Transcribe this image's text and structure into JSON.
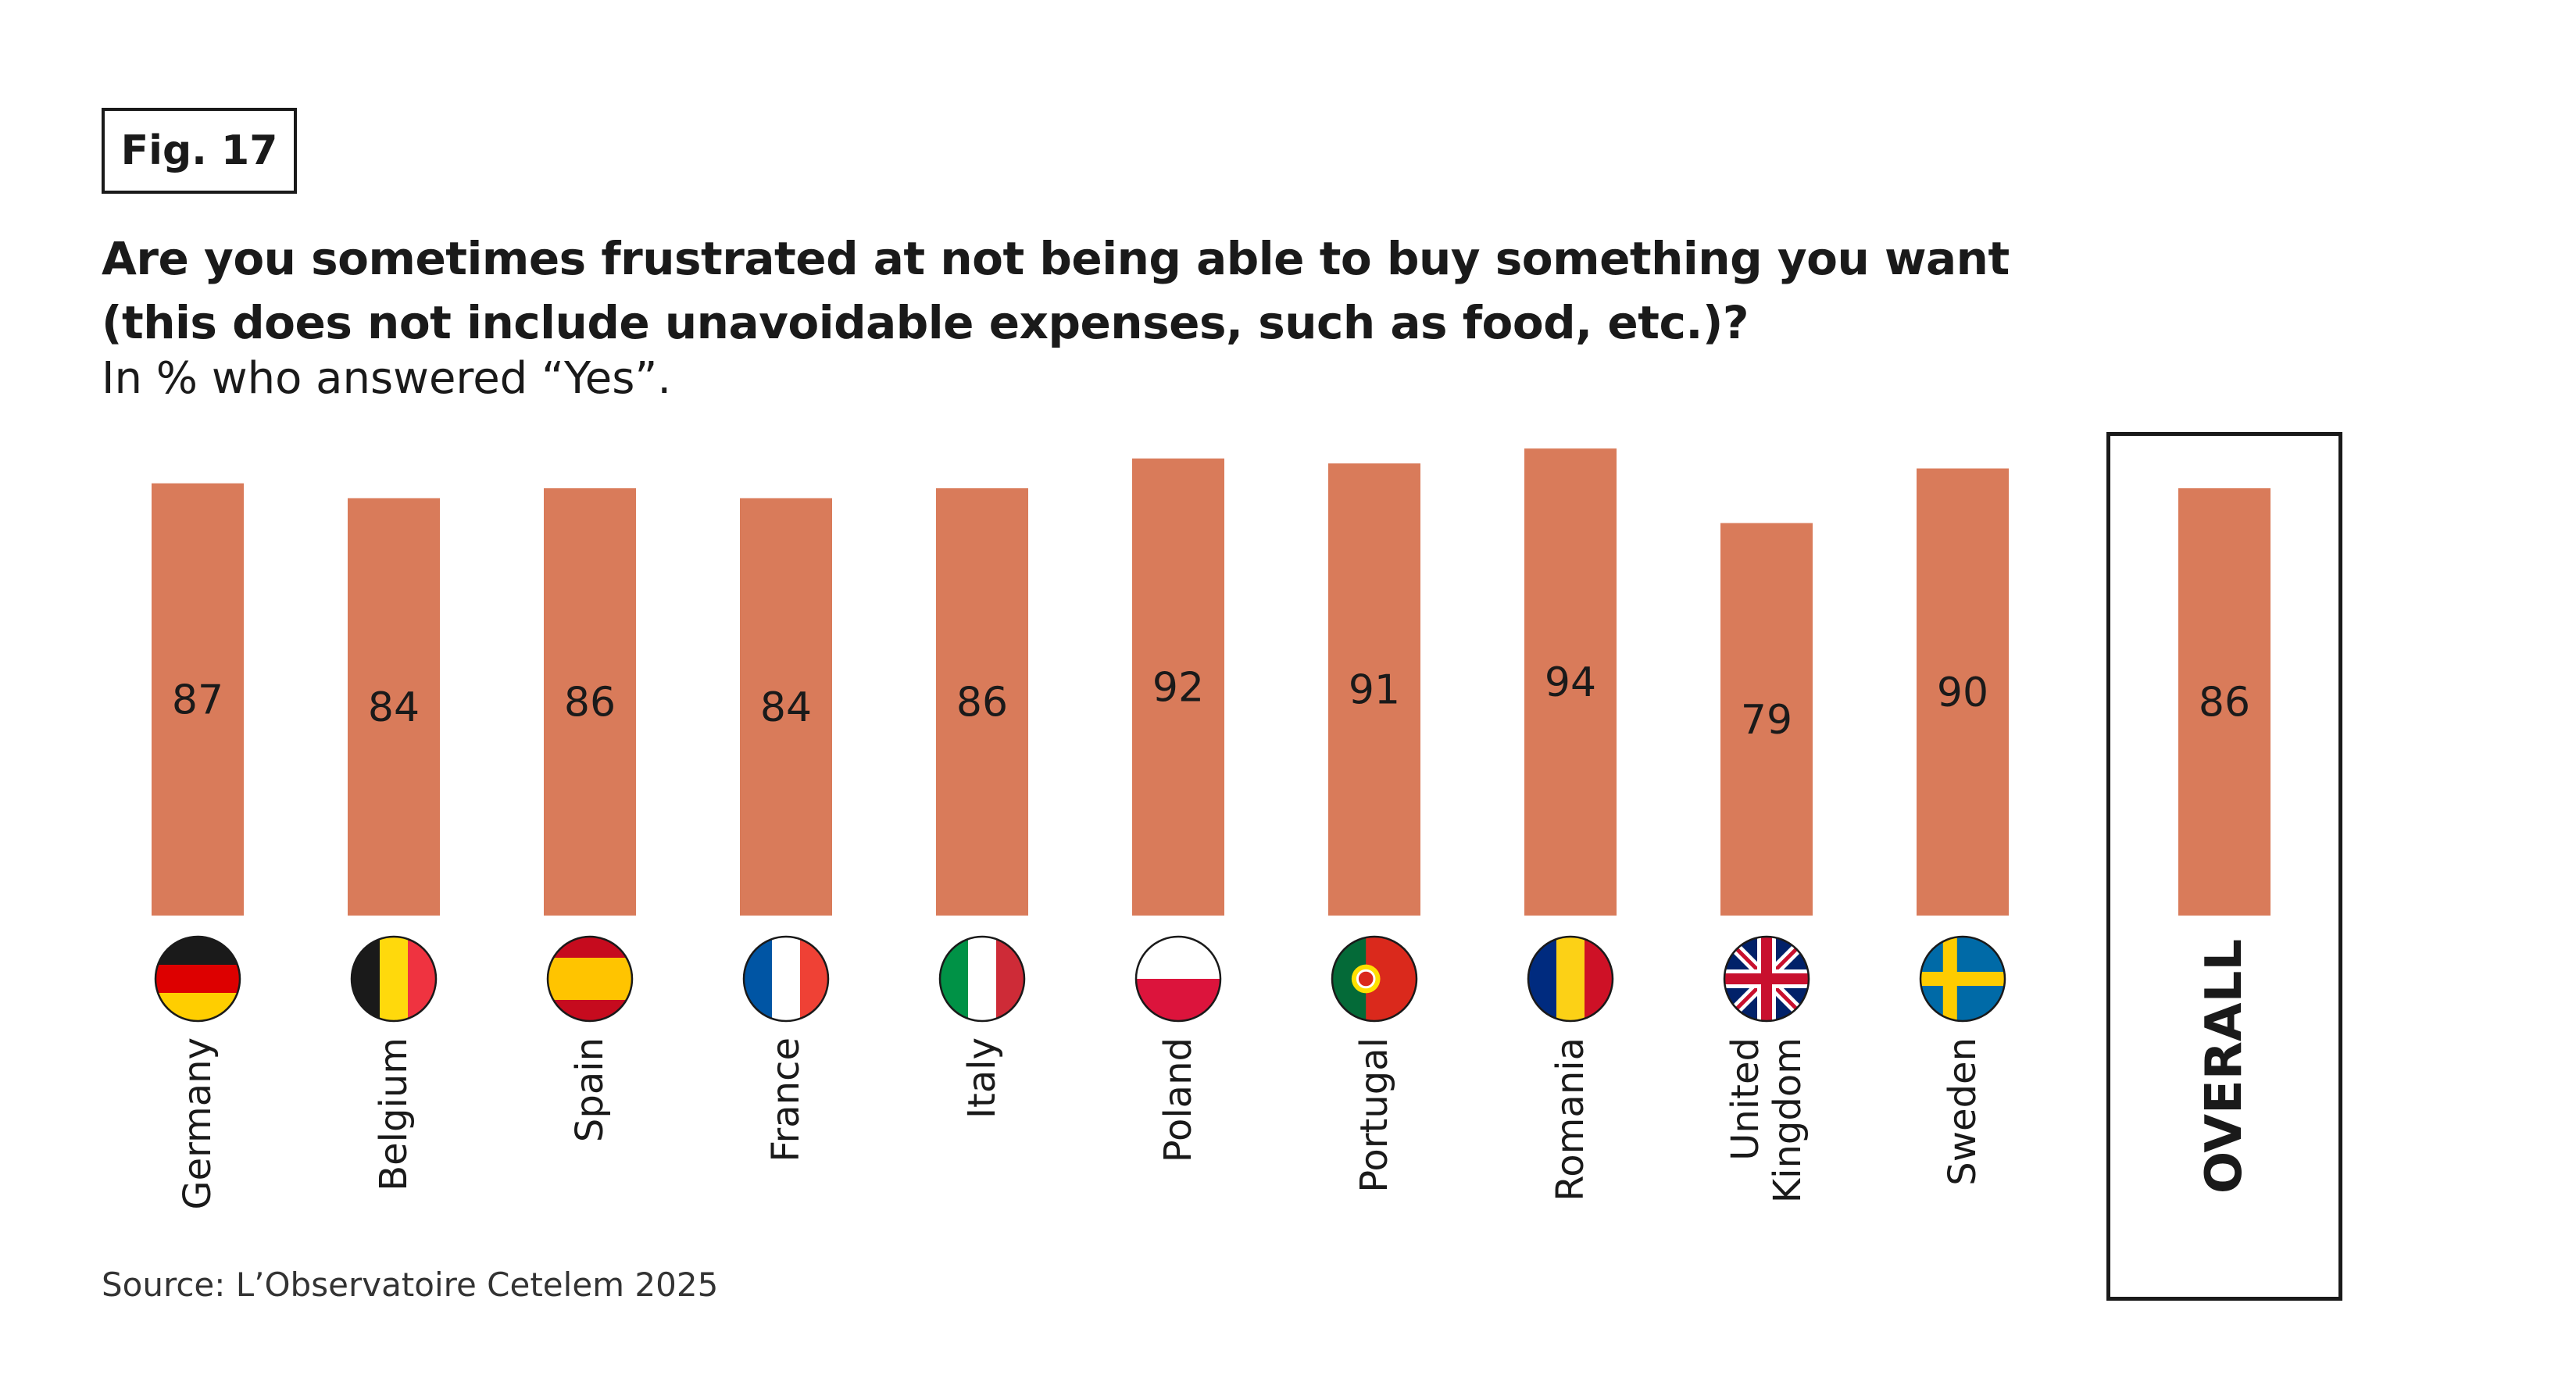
{
  "figure_label": "Fig. 17",
  "title_lines": [
    "Are you sometimes frustrated at not being able to buy something you want",
    "(this does not include unavoidable expenses, such as food, etc.)?"
  ],
  "subtitle": "In % who answered “Yes”.",
  "source": "Source: L’Observatoire Cetelem 2025",
  "colors": {
    "bar": "#D97B5A",
    "text": "#1a1a1a",
    "frame": "#1a1a1a"
  },
  "chart_data": {
    "type": "bar",
    "title": "Are you sometimes frustrated at not being able to buy something you want (this does not include unavoidable expenses, such as food, etc.)?",
    "subtitle": "In % who answered “Yes”.",
    "unit": "%",
    "categories": [
      {
        "name": "Germany",
        "label_lines": [
          "Germany"
        ],
        "value": 87,
        "flag": "germany-flag-icon"
      },
      {
        "name": "Belgium",
        "label_lines": [
          "Belgium"
        ],
        "value": 84,
        "flag": "belgium-flag-icon"
      },
      {
        "name": "Spain",
        "label_lines": [
          "Spain"
        ],
        "value": 86,
        "flag": "spain-flag-icon"
      },
      {
        "name": "France",
        "label_lines": [
          "France"
        ],
        "value": 84,
        "flag": "france-flag-icon"
      },
      {
        "name": "Italy",
        "label_lines": [
          "Italy"
        ],
        "value": 86,
        "flag": "italy-flag-icon"
      },
      {
        "name": "Poland",
        "label_lines": [
          "Poland"
        ],
        "value": 92,
        "flag": "poland-flag-icon"
      },
      {
        "name": "Portugal",
        "label_lines": [
          "Portugal"
        ],
        "value": 91,
        "flag": "portugal-flag-icon"
      },
      {
        "name": "Romania",
        "label_lines": [
          "Romania"
        ],
        "value": 94,
        "flag": "romania-flag-icon"
      },
      {
        "name": "United Kingdom",
        "label_lines": [
          "United",
          "Kingdom"
        ],
        "value": 79,
        "flag": "uk-flag-icon"
      },
      {
        "name": "Sweden",
        "label_lines": [
          "Sweden"
        ],
        "value": 90,
        "flag": "sweden-flag-icon"
      }
    ],
    "overall": {
      "label": "OVERALL",
      "value": 86
    },
    "ylim": [
      0,
      100
    ],
    "grid": false,
    "legend": "none"
  }
}
